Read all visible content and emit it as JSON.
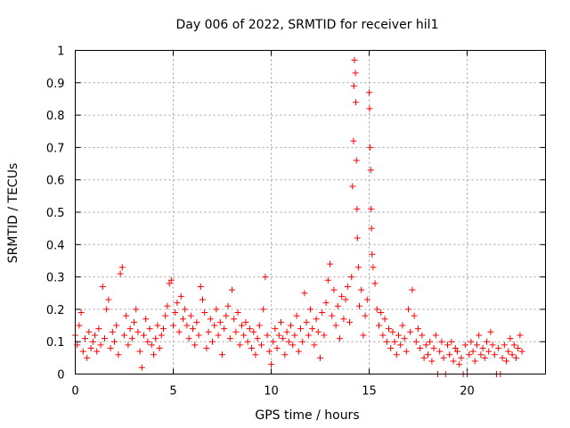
{
  "chart_data": {
    "type": "scatter",
    "title": "Day 006 of 2022, SRMTID for receiver hil1",
    "xlabel": "GPS time / hours",
    "ylabel": "SRMTID / TECUs",
    "xlim": [
      0,
      24
    ],
    "ylim": [
      0,
      1
    ],
    "x_ticks": [
      0,
      5,
      10,
      15,
      20
    ],
    "x_tick_labels": [
      "0",
      "5",
      "10",
      "15",
      "20"
    ],
    "y_ticks": [
      0,
      0.1,
      0.2,
      0.3,
      0.4,
      0.5,
      0.6,
      0.7,
      0.8,
      0.9,
      1
    ],
    "y_tick_labels": [
      "0",
      "0.1",
      "0.2",
      "0.3",
      "0.4",
      "0.5",
      "0.6",
      "0.7",
      "0.8",
      "0.9",
      "1"
    ],
    "grid": true,
    "marker": "+",
    "color": "#ff0000",
    "series": [
      {
        "name": "SRMTID",
        "points": [
          [
            0.0,
            0.12
          ],
          [
            0.1,
            0.09
          ],
          [
            0.2,
            0.15
          ],
          [
            0.3,
            0.19
          ],
          [
            0.4,
            0.07
          ],
          [
            0.5,
            0.11
          ],
          [
            0.6,
            0.05
          ],
          [
            0.7,
            0.13
          ],
          [
            0.8,
            0.08
          ],
          [
            0.9,
            0.1
          ],
          [
            1.0,
            0.12
          ],
          [
            1.1,
            0.07
          ],
          [
            1.2,
            0.14
          ],
          [
            1.3,
            0.09
          ],
          [
            1.4,
            0.27
          ],
          [
            1.5,
            0.11
          ],
          [
            1.6,
            0.2
          ],
          [
            1.7,
            0.23
          ],
          [
            1.8,
            0.08
          ],
          [
            1.9,
            0.13
          ],
          [
            2.0,
            0.1
          ],
          [
            2.1,
            0.15
          ],
          [
            2.2,
            0.06
          ],
          [
            2.3,
            0.31
          ],
          [
            2.4,
            0.33
          ],
          [
            2.5,
            0.12
          ],
          [
            2.6,
            0.18
          ],
          [
            2.7,
            0.09
          ],
          [
            2.8,
            0.14
          ],
          [
            2.9,
            0.11
          ],
          [
            3.0,
            0.16
          ],
          [
            3.1,
            0.2
          ],
          [
            3.2,
            0.13
          ],
          [
            3.3,
            0.07
          ],
          [
            3.4,
            0.02
          ],
          [
            3.5,
            0.12
          ],
          [
            3.6,
            0.17
          ],
          [
            3.7,
            0.1
          ],
          [
            3.8,
            0.14
          ],
          [
            3.9,
            0.09
          ],
          [
            4.0,
            0.06
          ],
          [
            4.1,
            0.11
          ],
          [
            4.2,
            0.15
          ],
          [
            4.3,
            0.08
          ],
          [
            4.4,
            0.12
          ],
          [
            4.5,
            0.14
          ],
          [
            4.6,
            0.18
          ],
          [
            4.7,
            0.21
          ],
          [
            4.8,
            0.28
          ],
          [
            4.9,
            0.29
          ],
          [
            5.0,
            0.15
          ],
          [
            5.1,
            0.19
          ],
          [
            5.2,
            0.22
          ],
          [
            5.3,
            0.13
          ],
          [
            5.4,
            0.24
          ],
          [
            5.5,
            0.17
          ],
          [
            5.6,
            0.2
          ],
          [
            5.7,
            0.15
          ],
          [
            5.8,
            0.11
          ],
          [
            5.9,
            0.18
          ],
          [
            6.0,
            0.14
          ],
          [
            6.1,
            0.09
          ],
          [
            6.2,
            0.16
          ],
          [
            6.3,
            0.12
          ],
          [
            6.4,
            0.27
          ],
          [
            6.5,
            0.23
          ],
          [
            6.6,
            0.19
          ],
          [
            6.7,
            0.08
          ],
          [
            6.8,
            0.13
          ],
          [
            6.9,
            0.17
          ],
          [
            7.0,
            0.1
          ],
          [
            7.1,
            0.15
          ],
          [
            7.2,
            0.2
          ],
          [
            7.3,
            0.12
          ],
          [
            7.4,
            0.16
          ],
          [
            7.5,
            0.06
          ],
          [
            7.6,
            0.14
          ],
          [
            7.7,
            0.18
          ],
          [
            7.8,
            0.21
          ],
          [
            7.9,
            0.11
          ],
          [
            8.0,
            0.26
          ],
          [
            8.1,
            0.17
          ],
          [
            8.2,
            0.13
          ],
          [
            8.3,
            0.19
          ],
          [
            8.4,
            0.09
          ],
          [
            8.5,
            0.15
          ],
          [
            8.6,
            0.12
          ],
          [
            8.7,
            0.16
          ],
          [
            8.8,
            0.1
          ],
          [
            8.9,
            0.14
          ],
          [
            9.0,
            0.08
          ],
          [
            9.1,
            0.13
          ],
          [
            9.2,
            0.06
          ],
          [
            9.3,
            0.11
          ],
          [
            9.4,
            0.15
          ],
          [
            9.5,
            0.09
          ],
          [
            9.6,
            0.2
          ],
          [
            9.7,
            0.3
          ],
          [
            9.8,
            0.12
          ],
          [
            9.9,
            0.07
          ],
          [
            10.0,
            0.03
          ],
          [
            10.1,
            0.1
          ],
          [
            10.2,
            0.14
          ],
          [
            10.3,
            0.08
          ],
          [
            10.4,
            0.12
          ],
          [
            10.5,
            0.16
          ],
          [
            10.6,
            0.11
          ],
          [
            10.7,
            0.06
          ],
          [
            10.8,
            0.13
          ],
          [
            10.9,
            0.1
          ],
          [
            11.0,
            0.15
          ],
          [
            11.1,
            0.09
          ],
          [
            11.2,
            0.12
          ],
          [
            11.3,
            0.18
          ],
          [
            11.4,
            0.07
          ],
          [
            11.5,
            0.14
          ],
          [
            11.6,
            0.1
          ],
          [
            11.7,
            0.25
          ],
          [
            11.8,
            0.16
          ],
          [
            11.9,
            0.12
          ],
          [
            12.0,
            0.2
          ],
          [
            12.1,
            0.14
          ],
          [
            12.2,
            0.09
          ],
          [
            12.3,
            0.17
          ],
          [
            12.4,
            0.13
          ],
          [
            12.5,
            0.05
          ],
          [
            12.6,
            0.19
          ],
          [
            12.7,
            0.12
          ],
          [
            12.8,
            0.22
          ],
          [
            12.9,
            0.29
          ],
          [
            13.0,
            0.34
          ],
          [
            13.1,
            0.18
          ],
          [
            13.2,
            0.26
          ],
          [
            13.3,
            0.15
          ],
          [
            13.4,
            0.21
          ],
          [
            13.5,
            0.11
          ],
          [
            13.6,
            0.24
          ],
          [
            13.7,
            0.17
          ],
          [
            13.8,
            0.23
          ],
          [
            13.9,
            0.27
          ],
          [
            14.0,
            0.16
          ],
          [
            14.1,
            0.3
          ],
          [
            14.15,
            0.58
          ],
          [
            14.2,
            0.72
          ],
          [
            14.22,
            0.89
          ],
          [
            14.25,
            0.97
          ],
          [
            14.3,
            0.93
          ],
          [
            14.32,
            0.84
          ],
          [
            14.35,
            0.66
          ],
          [
            14.38,
            0.51
          ],
          [
            14.4,
            0.42
          ],
          [
            14.45,
            0.33
          ],
          [
            14.5,
            0.21
          ],
          [
            14.6,
            0.26
          ],
          [
            14.7,
            0.12
          ],
          [
            14.8,
            0.18
          ],
          [
            14.9,
            0.23
          ],
          [
            15.0,
            0.87
          ],
          [
            15.02,
            0.82
          ],
          [
            15.05,
            0.7
          ],
          [
            15.08,
            0.63
          ],
          [
            15.1,
            0.51
          ],
          [
            15.12,
            0.45
          ],
          [
            15.15,
            0.37
          ],
          [
            15.2,
            0.33
          ],
          [
            15.3,
            0.28
          ],
          [
            15.4,
            0.2
          ],
          [
            15.5,
            0.15
          ],
          [
            15.6,
            0.19
          ],
          [
            15.7,
            0.12
          ],
          [
            15.8,
            0.17
          ],
          [
            15.9,
            0.1
          ],
          [
            16.0,
            0.14
          ],
          [
            16.1,
            0.08
          ],
          [
            16.2,
            0.13
          ],
          [
            16.3,
            0.1
          ],
          [
            16.4,
            0.06
          ],
          [
            16.5,
            0.12
          ],
          [
            16.6,
            0.09
          ],
          [
            16.7,
            0.15
          ],
          [
            16.8,
            0.11
          ],
          [
            16.9,
            0.07
          ],
          [
            17.0,
            0.2
          ],
          [
            17.1,
            0.13
          ],
          [
            17.2,
            0.26
          ],
          [
            17.3,
            0.18
          ],
          [
            17.4,
            0.1
          ],
          [
            17.5,
            0.14
          ],
          [
            17.6,
            0.08
          ],
          [
            17.7,
            0.12
          ],
          [
            17.8,
            0.05
          ],
          [
            17.9,
            0.09
          ],
          [
            18.0,
            0.06
          ],
          [
            18.1,
            0.1
          ],
          [
            18.2,
            0.04
          ],
          [
            18.3,
            0.08
          ],
          [
            18.4,
            0.12
          ],
          [
            18.5,
            0.0
          ],
          [
            18.6,
            0.07
          ],
          [
            18.7,
            0.1
          ],
          [
            18.8,
            0.05
          ],
          [
            18.9,
            0.0
          ],
          [
            19.0,
            0.09
          ],
          [
            19.1,
            0.06
          ],
          [
            19.2,
            0.1
          ],
          [
            19.3,
            0.04
          ],
          [
            19.4,
            0.08
          ],
          [
            19.5,
            0.07
          ],
          [
            19.6,
            0.03
          ],
          [
            19.7,
            0.05
          ],
          [
            19.8,
            0.0
          ],
          [
            19.9,
            0.09
          ],
          [
            20.0,
            0.0
          ],
          [
            20.1,
            0.06
          ],
          [
            20.2,
            0.1
          ],
          [
            20.3,
            0.07
          ],
          [
            20.4,
            0.04
          ],
          [
            20.5,
            0.09
          ],
          [
            20.6,
            0.12
          ],
          [
            20.7,
            0.06
          ],
          [
            20.8,
            0.08
          ],
          [
            20.9,
            0.05
          ],
          [
            21.0,
            0.1
          ],
          [
            21.1,
            0.07
          ],
          [
            21.2,
            0.13
          ],
          [
            21.3,
            0.09
          ],
          [
            21.4,
            0.06
          ],
          [
            21.5,
            0.0
          ],
          [
            21.6,
            0.08
          ],
          [
            21.7,
            0.0
          ],
          [
            21.8,
            0.05
          ],
          [
            21.9,
            0.09
          ],
          [
            22.0,
            0.04
          ],
          [
            22.1,
            0.07
          ],
          [
            22.2,
            0.11
          ],
          [
            22.3,
            0.06
          ],
          [
            22.4,
            0.09
          ],
          [
            22.5,
            0.05
          ],
          [
            22.6,
            0.08
          ],
          [
            22.7,
            0.12
          ],
          [
            22.8,
            0.07
          ]
        ]
      }
    ]
  }
}
